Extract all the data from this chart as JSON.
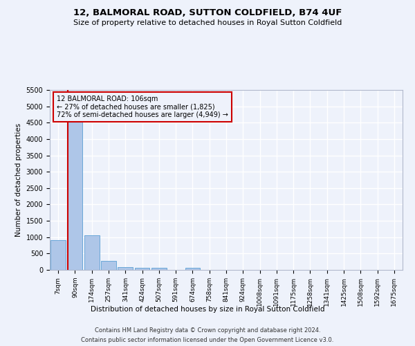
{
  "title": "12, BALMORAL ROAD, SUTTON COLDFIELD, B74 4UF",
  "subtitle": "Size of property relative to detached houses in Royal Sutton Coldfield",
  "xlabel": "Distribution of detached houses by size in Royal Sutton Coldfield",
  "ylabel": "Number of detached properties",
  "footer_line1": "Contains HM Land Registry data © Crown copyright and database right 2024.",
  "footer_line2": "Contains public sector information licensed under the Open Government Licence v3.0.",
  "property_label": "12 BALMORAL ROAD: 106sqm",
  "annotation_line1": "← 27% of detached houses are smaller (1,825)",
  "annotation_line2": "72% of semi-detached houses are larger (4,949) →",
  "bar_labels": [
    "7sqm",
    "90sqm",
    "174sqm",
    "257sqm",
    "341sqm",
    "424sqm",
    "507sqm",
    "591sqm",
    "674sqm",
    "758sqm",
    "841sqm",
    "924sqm",
    "1008sqm",
    "1091sqm",
    "1175sqm",
    "1258sqm",
    "1341sqm",
    "1425sqm",
    "1508sqm",
    "1592sqm",
    "1675sqm"
  ],
  "bar_values": [
    900,
    4550,
    1060,
    275,
    80,
    65,
    55,
    0,
    60,
    0,
    0,
    0,
    0,
    0,
    0,
    0,
    0,
    0,
    0,
    0,
    0
  ],
  "bar_color": "#aec6e8",
  "bar_edge_color": "#5a9fd4",
  "property_line_x": 0.575,
  "ylim": [
    0,
    5500
  ],
  "yticks": [
    0,
    500,
    1000,
    1500,
    2000,
    2500,
    3000,
    3500,
    4000,
    4500,
    5000,
    5500
  ],
  "bg_color": "#eef2fb",
  "grid_color": "#ffffff",
  "annotation_box_color": "#cc0000",
  "property_line_color": "#cc0000"
}
